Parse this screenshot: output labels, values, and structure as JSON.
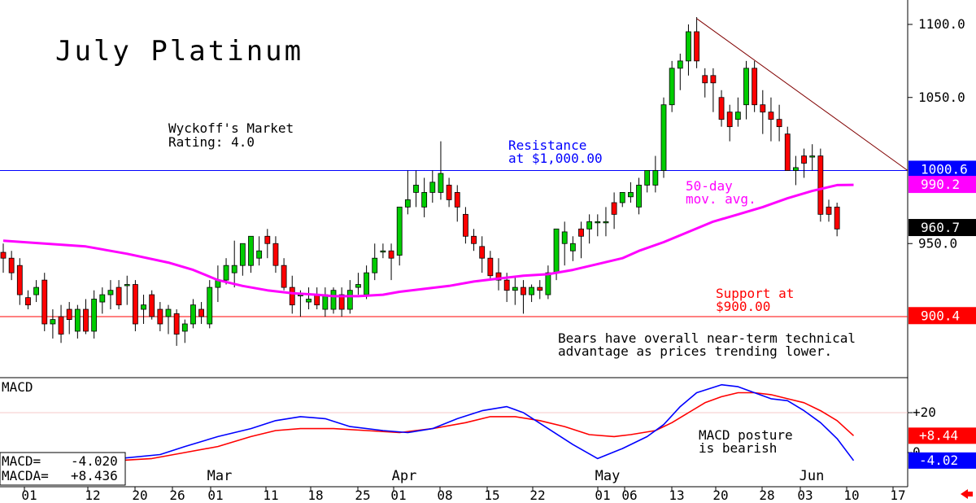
{
  "chart_data": {
    "type": "candlestick",
    "title": "July Platinum",
    "rating": [
      "Wyckoff's Market",
      "Rating: 4.0"
    ],
    "price_axis": {
      "ylim": [
        885,
        1110
      ],
      "ticks": [
        "1100.0",
        "1050.0",
        "950.0"
      ],
      "tick_values": [
        1100,
        1050,
        950
      ]
    },
    "macd_axis": {
      "ylim": [
        -10,
        30
      ],
      "ticks": [
        "+20",
        "0"
      ],
      "tick_values": [
        20,
        0
      ]
    },
    "x_ticks": [
      "01",
      "12",
      "20",
      "26",
      "01",
      "11",
      "18",
      "25",
      "01",
      "08",
      "15",
      "22",
      "01",
      "06",
      "13",
      "20",
      "28",
      "03",
      "10",
      "17"
    ],
    "months": [
      "Mar",
      "Apr",
      "May",
      "Jun"
    ],
    "candles": [
      [
        944,
        950,
        930,
        940
      ],
      [
        940,
        945,
        925,
        930
      ],
      [
        935,
        940,
        908,
        915
      ],
      [
        913,
        918,
        905,
        908
      ],
      [
        915,
        925,
        910,
        920
      ],
      [
        925,
        930,
        890,
        895
      ],
      [
        895,
        905,
        885,
        898
      ],
      [
        900,
        908,
        882,
        888
      ],
      [
        905,
        910,
        888,
        898
      ],
      [
        890,
        908,
        885,
        905
      ],
      [
        905,
        912,
        888,
        890
      ],
      [
        890,
        918,
        885,
        912
      ],
      [
        910,
        920,
        902,
        915
      ],
      [
        915,
        925,
        905,
        918
      ],
      [
        920,
        925,
        905,
        908
      ],
      [
        922,
        928,
        908,
        922
      ],
      [
        922,
        925,
        890,
        895
      ],
      [
        905,
        915,
        895,
        908
      ],
      [
        915,
        918,
        898,
        900
      ],
      [
        905,
        910,
        890,
        895
      ],
      [
        900,
        908,
        888,
        905
      ],
      [
        902,
        905,
        880,
        888
      ],
      [
        890,
        898,
        882,
        895
      ],
      [
        895,
        912,
        892,
        908
      ],
      [
        905,
        910,
        895,
        900
      ],
      [
        895,
        925,
        892,
        920
      ],
      [
        920,
        935,
        910,
        925
      ],
      [
        925,
        940,
        922,
        935
      ],
      [
        930,
        952,
        920,
        935
      ],
      [
        935,
        950,
        928,
        950
      ],
      [
        935,
        955,
        930,
        955
      ],
      [
        940,
        955,
        935,
        945
      ],
      [
        955,
        960,
        940,
        950
      ],
      [
        950,
        955,
        930,
        935
      ],
      [
        935,
        940,
        918,
        920
      ],
      [
        920,
        928,
        902,
        908
      ],
      [
        915,
        918,
        900,
        915
      ],
      [
        910,
        920,
        905,
        912
      ],
      [
        915,
        920,
        905,
        908
      ],
      [
        905,
        920,
        900,
        915
      ],
      [
        905,
        920,
        902,
        918
      ],
      [
        915,
        920,
        900,
        905
      ],
      [
        905,
        925,
        902,
        918
      ],
      [
        920,
        930,
        915,
        922
      ],
      [
        915,
        935,
        912,
        930
      ],
      [
        930,
        950,
        925,
        940
      ],
      [
        945,
        950,
        940,
        945
      ],
      [
        945,
        950,
        925,
        940
      ],
      [
        942,
        975,
        935,
        975
      ],
      [
        975,
        1000,
        970,
        980
      ],
      [
        985,
        1000,
        975,
        990
      ],
      [
        975,
        995,
        968,
        985
      ],
      [
        985,
        1000,
        978,
        992
      ],
      [
        985,
        1020,
        980,
        998
      ],
      [
        990,
        995,
        975,
        980
      ],
      [
        985,
        990,
        965,
        975
      ],
      [
        970,
        975,
        950,
        955
      ],
      [
        955,
        960,
        945,
        950
      ],
      [
        948,
        955,
        930,
        940
      ],
      [
        940,
        945,
        925,
        928
      ],
      [
        930,
        940,
        918,
        925
      ],
      [
        925,
        930,
        910,
        918
      ],
      [
        918,
        928,
        908,
        920
      ],
      [
        920,
        925,
        902,
        915
      ],
      [
        915,
        922,
        910,
        920
      ],
      [
        920,
        925,
        912,
        918
      ],
      [
        915,
        935,
        912,
        930
      ],
      [
        930,
        960,
        925,
        960
      ],
      [
        950,
        965,
        935,
        958
      ],
      [
        945,
        955,
        938,
        950
      ],
      [
        960,
        965,
        940,
        955
      ],
      [
        960,
        970,
        950,
        965
      ],
      [
        965,
        970,
        955,
        965
      ],
      [
        965,
        975,
        955,
        965
      ],
      [
        978,
        985,
        960,
        970
      ],
      [
        978,
        985,
        975,
        985
      ],
      [
        982,
        992,
        978,
        985
      ],
      [
        975,
        995,
        970,
        990
      ],
      [
        990,
        1000,
        985,
        1000
      ],
      [
        990,
        1010,
        985,
        1000
      ],
      [
        1000,
        1050,
        995,
        1045
      ],
      [
        1045,
        1075,
        1040,
        1070
      ],
      [
        1070,
        1080,
        1055,
        1075
      ],
      [
        1075,
        1100,
        1065,
        1095
      ],
      [
        1095,
        1105,
        1070,
        1075
      ],
      [
        1065,
        1070,
        1050,
        1060
      ],
      [
        1065,
        1070,
        1040,
        1060
      ],
      [
        1050,
        1055,
        1030,
        1035
      ],
      [
        1040,
        1045,
        1020,
        1030
      ],
      [
        1035,
        1050,
        1030,
        1040
      ],
      [
        1045,
        1075,
        1035,
        1070
      ],
      [
        1070,
        1075,
        1040,
        1045
      ],
      [
        1045,
        1055,
        1025,
        1040
      ],
      [
        1040,
        1050,
        1020,
        1035
      ],
      [
        1035,
        1045,
        1020,
        1030
      ],
      [
        1025,
        1030,
        1000,
        1000
      ],
      [
        1000,
        1010,
        990,
        1002
      ],
      [
        1010,
        1015,
        995,
        1005
      ],
      [
        1010,
        1018,
        1000,
        1010
      ],
      [
        1010,
        1015,
        965,
        970
      ],
      [
        975,
        980,
        965,
        970
      ],
      [
        975,
        978,
        955,
        960
      ]
    ],
    "moving_average_label": [
      "50-day",
      "mov. avg."
    ],
    "moving_average": [
      [
        0,
        952
      ],
      [
        5,
        950
      ],
      [
        10,
        948
      ],
      [
        15,
        943
      ],
      [
        20,
        937
      ],
      [
        23,
        932
      ],
      [
        26,
        925
      ],
      [
        29,
        921
      ],
      [
        32,
        918
      ],
      [
        35,
        916
      ],
      [
        38,
        915
      ],
      [
        40,
        914
      ],
      [
        43,
        914
      ],
      [
        46,
        915
      ],
      [
        48,
        917
      ],
      [
        51,
        919
      ],
      [
        54,
        921
      ],
      [
        57,
        924
      ],
      [
        60,
        926
      ],
      [
        63,
        928
      ],
      [
        66,
        929
      ],
      [
        69,
        932
      ],
      [
        72,
        936
      ],
      [
        75,
        940
      ],
      [
        77,
        945
      ],
      [
        80,
        951
      ],
      [
        83,
        958
      ],
      [
        86,
        965
      ],
      [
        89,
        970
      ],
      [
        92,
        975
      ],
      [
        95,
        981
      ],
      [
        98,
        986
      ],
      [
        101,
        990
      ],
      [
        103,
        990.2
      ]
    ],
    "macd": [
      [
        0,
        -12
      ],
      [
        10,
        -4
      ],
      [
        14,
        -3
      ],
      [
        19,
        -1
      ],
      [
        22,
        3
      ],
      [
        26,
        8
      ],
      [
        30,
        12
      ],
      [
        33,
        16
      ],
      [
        36,
        18
      ],
      [
        39,
        17
      ],
      [
        42,
        13
      ],
      [
        46,
        11
      ],
      [
        49,
        10
      ],
      [
        52,
        12
      ],
      [
        55,
        17
      ],
      [
        58,
        21
      ],
      [
        61,
        23
      ],
      [
        63,
        20
      ],
      [
        66,
        12
      ],
      [
        69,
        4
      ],
      [
        72,
        -3
      ],
      [
        75,
        2
      ],
      [
        78,
        8
      ],
      [
        80,
        14
      ],
      [
        82,
        23
      ],
      [
        84,
        30
      ],
      [
        87,
        34
      ],
      [
        89,
        33
      ],
      [
        91,
        30
      ],
      [
        93,
        27
      ],
      [
        95,
        26
      ],
      [
        97,
        21
      ],
      [
        99,
        15
      ],
      [
        101,
        7
      ],
      [
        103,
        -4
      ]
    ],
    "macda": [
      [
        0,
        -12
      ],
      [
        10,
        -5
      ],
      [
        14,
        -4
      ],
      [
        18,
        -3
      ],
      [
        22,
        0
      ],
      [
        26,
        3
      ],
      [
        30,
        8
      ],
      [
        33,
        11
      ],
      [
        36,
        12
      ],
      [
        40,
        12
      ],
      [
        44,
        11
      ],
      [
        48,
        10
      ],
      [
        52,
        12
      ],
      [
        56,
        15
      ],
      [
        59,
        18
      ],
      [
        62,
        18
      ],
      [
        65,
        16
      ],
      [
        68,
        13
      ],
      [
        71,
        9
      ],
      [
        74,
        8
      ],
      [
        76,
        9
      ],
      [
        79,
        11
      ],
      [
        81,
        15
      ],
      [
        83,
        20
      ],
      [
        85,
        25
      ],
      [
        87,
        28
      ],
      [
        89,
        30
      ],
      [
        91,
        30
      ],
      [
        93,
        29
      ],
      [
        95,
        27
      ],
      [
        97,
        25
      ],
      [
        99,
        21
      ],
      [
        101,
        16
      ],
      [
        103,
        8.44
      ]
    ],
    "trendline": [
      [
        84,
        1104
      ],
      [
        103,
        1000
      ]
    ],
    "resistance": {
      "value": 1000.0,
      "label": [
        "Resistance",
        "at $1,000.00"
      ]
    },
    "support": {
      "value": 900.0,
      "label": [
        "Support at",
        "$900.00"
      ]
    },
    "commentary": [
      "Bears have overall near-term technical",
      "advantage as prices trending lower."
    ],
    "macd_panel_title": "MACD",
    "macd_posture": [
      "MACD posture",
      "is bearish"
    ],
    "macd_readout": {
      "macd_label": "MACD=",
      "macd_value": "-4.020",
      "macda_label": "MACDA=",
      "macda_value": "+8.436"
    },
    "price_badges": [
      {
        "text": "1000.6",
        "value": 1000.6,
        "color": "#0000ff"
      },
      {
        "text": "990.2",
        "value": 990.2,
        "color": "#ff00ff"
      },
      {
        "text": "960.7",
        "value": 960.7,
        "color": "#000000"
      },
      {
        "text": "900.4",
        "value": 900.4,
        "color": "#ff0000"
      }
    ],
    "macd_badges": [
      {
        "text": "+8.44",
        "value": 8.44,
        "color": "#ff0000"
      },
      {
        "text": "-4.02",
        "value": -4.02,
        "color": "#0000ff"
      }
    ],
    "colors": {
      "up": "#00cc00",
      "down": "#ff0000",
      "ma": "#ff00ff",
      "macd": "#0000ff",
      "macda": "#ff0000",
      "resistance": "#0000ff",
      "support": "#ff0000",
      "trendline": "#800000",
      "resistance_text": "#0000ff",
      "support_text": "#ff0000",
      "ma_text": "#ff00ff",
      "nav_arrow": "#ff0000"
    },
    "nav_icon": "left-arrow-icon"
  }
}
